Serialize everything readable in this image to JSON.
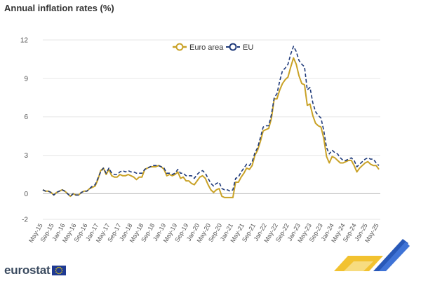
{
  "title": "Annual inflation rates (%)",
  "brand": {
    "name": "eurostat",
    "logo_icon": "eu-flag-icon",
    "corner_icon": "eurostat-corner-logo-icon"
  },
  "colors": {
    "euro_area": "#c9a227",
    "eu": "#1f3a7a",
    "grid": "#e6e6e6",
    "zero_line": "#b9b9b9"
  },
  "chart_data": {
    "type": "line",
    "title": "Annual inflation rates (%)",
    "ylim": [
      -2,
      12
    ],
    "yticks": [
      -2,
      0,
      3,
      6,
      9,
      12
    ],
    "grid": true,
    "legend_position": "top-center",
    "x_tick_labels": [
      "May-15",
      "Sep-15",
      "Jan-16",
      "May-16",
      "Sep-16",
      "Jan-17",
      "May-17",
      "Sep-17",
      "Jan-18",
      "May-18",
      "Sep-18",
      "Jan-19",
      "May-19",
      "Sep-19",
      "Jan-20",
      "May-20",
      "Sep-20",
      "Jan-21",
      "May-21",
      "Sep-21",
      "Jan-22",
      "May-22",
      "Sep-22",
      "Jan-23",
      "May-23",
      "Sep-23",
      "Jan-24",
      "May-24",
      "Sep-24",
      "Jan-25",
      "May-25"
    ],
    "series": [
      {
        "name": "Euro area",
        "style": "solid",
        "color": "#c9a227",
        "values": [
          0.3,
          0.2,
          0.2,
          0.1,
          -0.1,
          0.1,
          0.2,
          0.3,
          0.2,
          0.0,
          -0.2,
          0.0,
          -0.1,
          -0.1,
          0.1,
          0.2,
          0.2,
          0.4,
          0.5,
          0.6,
          1.1,
          1.8,
          2.0,
          1.5,
          1.9,
          1.4,
          1.3,
          1.3,
          1.5,
          1.4,
          1.4,
          1.5,
          1.4,
          1.3,
          1.1,
          1.3,
          1.3,
          1.9,
          2.0,
          2.1,
          2.1,
          2.1,
          2.2,
          2.1,
          1.9,
          1.4,
          1.5,
          1.4,
          1.5,
          1.7,
          1.2,
          1.3,
          1.0,
          1.0,
          0.8,
          0.7,
          1.0,
          1.3,
          1.4,
          1.2,
          0.7,
          0.3,
          0.1,
          0.3,
          0.4,
          -0.2,
          -0.3,
          -0.3,
          -0.3,
          -0.3,
          0.9,
          0.9,
          1.3,
          1.6,
          2.0,
          1.9,
          2.2,
          3.0,
          3.4,
          4.1,
          4.9,
          5.0,
          5.1,
          5.9,
          7.4,
          7.4,
          8.1,
          8.6,
          8.9,
          9.1,
          9.9,
          10.6,
          10.1,
          9.2,
          8.6,
          8.5,
          6.9,
          7.0,
          6.1,
          5.5,
          5.3,
          5.2,
          4.3,
          2.9,
          2.4,
          2.9,
          2.8,
          2.6,
          2.4,
          2.4,
          2.5,
          2.6,
          2.6,
          2.2,
          1.7,
          2.0,
          2.2,
          2.4,
          2.5,
          2.3,
          2.2,
          2.2,
          1.9
        ]
      },
      {
        "name": "EU",
        "style": "dashed",
        "color": "#1f3a7a",
        "values": [
          0.3,
          0.2,
          0.2,
          0.1,
          -0.1,
          0.1,
          0.2,
          0.3,
          0.2,
          0.0,
          -0.2,
          0.0,
          -0.1,
          -0.1,
          0.1,
          0.2,
          0.2,
          0.4,
          0.6,
          0.7,
          1.2,
          1.7,
          2.0,
          1.6,
          2.0,
          1.6,
          1.5,
          1.5,
          1.7,
          1.8,
          1.7,
          1.8,
          1.7,
          1.7,
          1.6,
          1.6,
          1.6,
          1.9,
          2.0,
          2.1,
          2.2,
          2.2,
          2.2,
          2.1,
          2.0,
          1.6,
          1.6,
          1.5,
          1.6,
          1.9,
          1.6,
          1.6,
          1.4,
          1.4,
          1.4,
          1.2,
          1.5,
          1.7,
          1.8,
          1.6,
          1.2,
          0.8,
          0.6,
          0.8,
          0.9,
          0.4,
          0.3,
          0.3,
          0.2,
          0.3,
          1.2,
          1.3,
          1.7,
          2.0,
          2.3,
          2.2,
          2.5,
          3.2,
          3.6,
          4.4,
          5.2,
          5.3,
          5.3,
          6.2,
          7.5,
          7.8,
          8.8,
          9.6,
          9.8,
          10.1,
          10.9,
          11.5,
          11.1,
          10.4,
          10.1,
          9.9,
          8.1,
          8.3,
          7.1,
          6.4,
          6.1,
          5.9,
          4.9,
          3.6,
          3.1,
          3.4,
          3.2,
          3.1,
          2.8,
          2.6,
          2.6,
          2.7,
          2.8,
          2.6,
          2.1,
          2.3,
          2.5,
          2.7,
          2.8,
          2.7,
          2.7,
          2.4,
          2.2
        ]
      }
    ]
  }
}
